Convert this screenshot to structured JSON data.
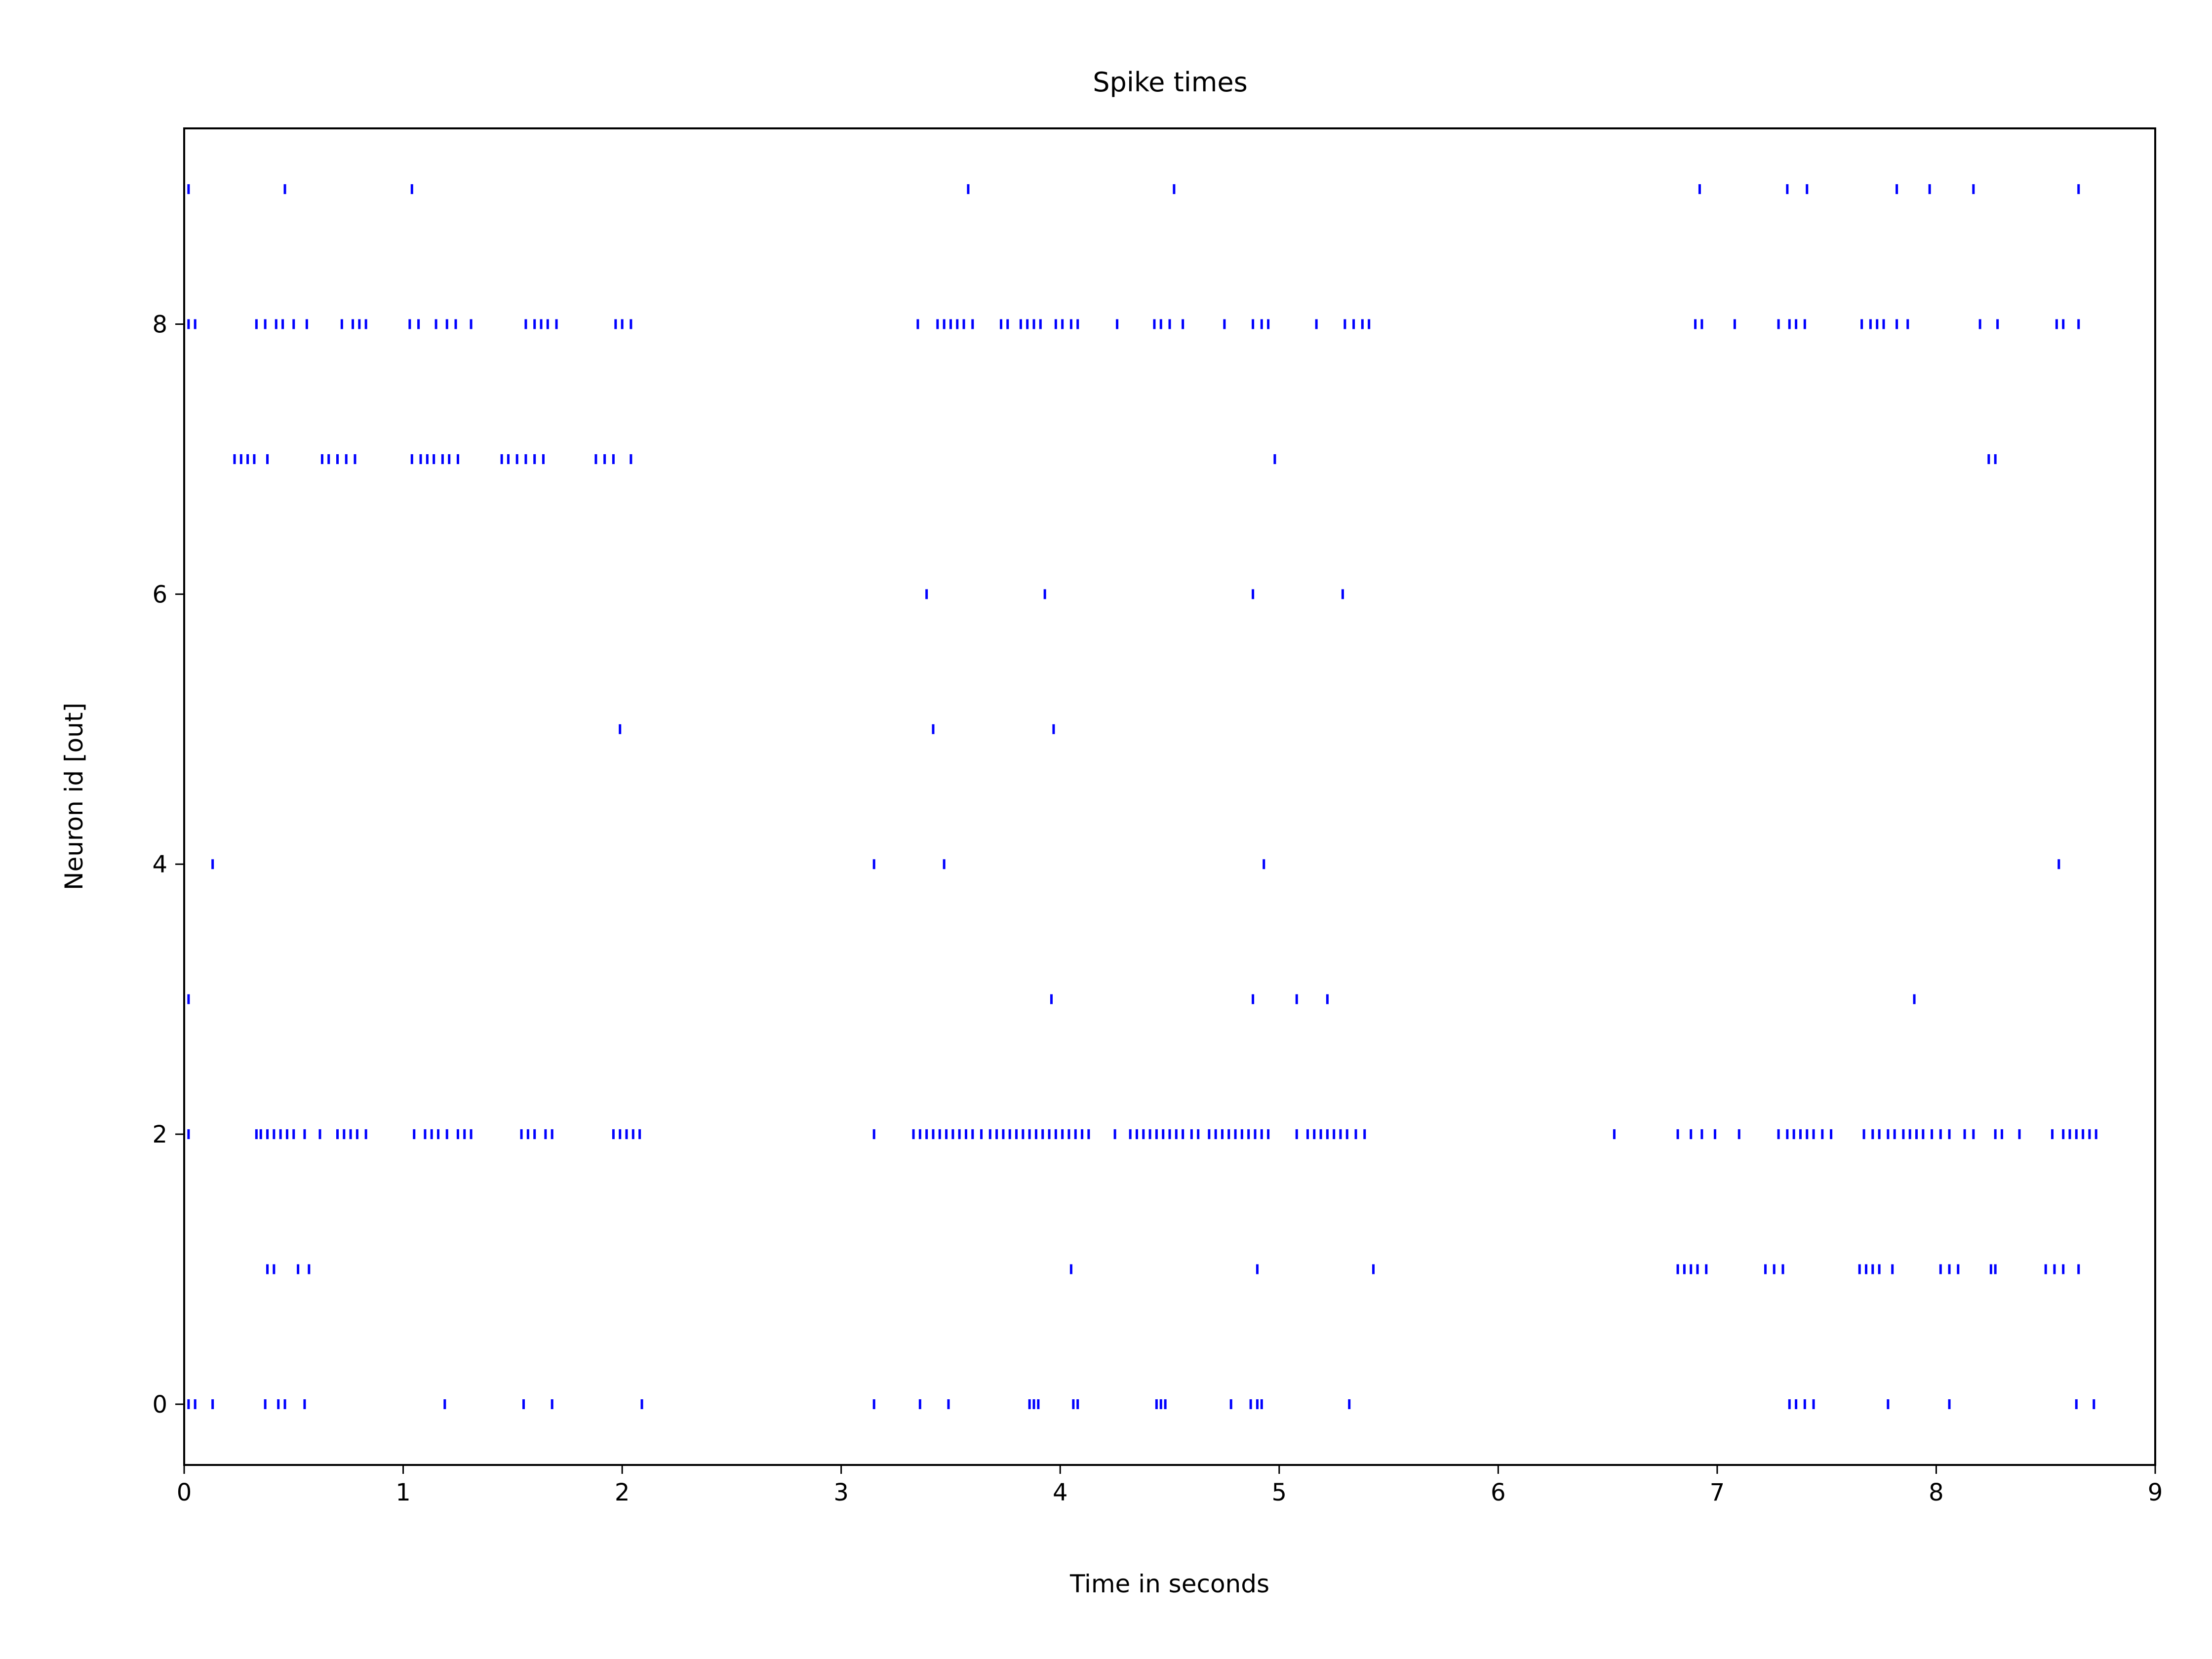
{
  "chart_data": {
    "type": "scatter",
    "title": "Spike times",
    "xlabel": "Time in seconds",
    "ylabel": "Neuron id [out]",
    "xlim": [
      0,
      9
    ],
    "ylim": [
      -0.45,
      9.45
    ],
    "xticks": [
      0,
      1,
      2,
      3,
      4,
      5,
      6,
      7,
      8,
      9
    ],
    "xtick_labels": [
      "0",
      "1",
      "2",
      "3",
      "4",
      "5",
      "6",
      "7",
      "8",
      "9"
    ],
    "yticks": [
      0,
      2,
      4,
      6,
      8
    ],
    "ytick_labels": [
      "0",
      "2",
      "4",
      "6",
      "8"
    ],
    "grid": false,
    "marker": "|",
    "color": "#0000ff",
    "series": [
      {
        "neuron": 0,
        "times": [
          0.02,
          0.05,
          0.13,
          0.37,
          0.43,
          0.46,
          0.55,
          1.19,
          1.55,
          1.68,
          2.09,
          3.15,
          3.36,
          3.49,
          3.86,
          3.88,
          3.9,
          4.06,
          4.08,
          4.44,
          4.46,
          4.48,
          4.78,
          4.87,
          4.9,
          4.92,
          5.32,
          7.33,
          7.36,
          7.4,
          7.44,
          7.78,
          8.06,
          8.64,
          8.72
        ]
      },
      {
        "neuron": 1,
        "times": [
          0.38,
          0.41,
          0.52,
          0.57,
          4.05,
          4.9,
          5.43,
          6.82,
          6.85,
          6.88,
          6.91,
          6.95,
          7.22,
          7.26,
          7.3,
          7.65,
          7.68,
          7.71,
          7.74,
          7.8,
          8.02,
          8.06,
          8.1,
          8.25,
          8.27,
          8.5,
          8.54,
          8.58,
          8.65
        ]
      },
      {
        "neuron": 2,
        "times": [
          0.02,
          0.33,
          0.35,
          0.38,
          0.41,
          0.44,
          0.47,
          0.5,
          0.55,
          0.62,
          0.7,
          0.73,
          0.76,
          0.79,
          0.83,
          1.05,
          1.1,
          1.13,
          1.16,
          1.2,
          1.25,
          1.28,
          1.31,
          1.54,
          1.57,
          1.6,
          1.65,
          1.68,
          1.96,
          1.99,
          2.02,
          2.05,
          2.08,
          3.15,
          3.33,
          3.36,
          3.39,
          3.42,
          3.45,
          3.48,
          3.51,
          3.54,
          3.57,
          3.6,
          3.64,
          3.68,
          3.71,
          3.74,
          3.77,
          3.8,
          3.83,
          3.86,
          3.89,
          3.92,
          3.95,
          3.98,
          4.01,
          4.04,
          4.07,
          4.1,
          4.13,
          4.25,
          4.32,
          4.35,
          4.38,
          4.41,
          4.44,
          4.47,
          4.5,
          4.53,
          4.56,
          4.6,
          4.63,
          4.68,
          4.71,
          4.74,
          4.77,
          4.8,
          4.83,
          4.86,
          4.89,
          4.92,
          4.95,
          5.08,
          5.13,
          5.16,
          5.19,
          5.22,
          5.25,
          5.28,
          5.31,
          5.35,
          5.39,
          6.53,
          6.82,
          6.88,
          6.93,
          6.99,
          7.1,
          7.28,
          7.32,
          7.35,
          7.38,
          7.41,
          7.44,
          7.48,
          7.52,
          7.67,
          7.71,
          7.74,
          7.78,
          7.81,
          7.85,
          7.88,
          7.91,
          7.94,
          7.98,
          8.02,
          8.06,
          8.13,
          8.17,
          8.27,
          8.3,
          8.38,
          8.53,
          8.58,
          8.61,
          8.64,
          8.67,
          8.7,
          8.73
        ]
      },
      {
        "neuron": 3,
        "times": [
          0.02,
          3.96,
          4.88,
          5.08,
          5.22,
          7.9
        ]
      },
      {
        "neuron": 4,
        "times": [
          0.13,
          3.15,
          3.47,
          4.93,
          8.56
        ]
      },
      {
        "neuron": 5,
        "times": [
          1.99,
          3.42,
          3.97
        ]
      },
      {
        "neuron": 6,
        "times": [
          3.39,
          3.93,
          4.88,
          5.29
        ]
      },
      {
        "neuron": 7,
        "times": [
          0.23,
          0.26,
          0.29,
          0.32,
          0.38,
          0.63,
          0.66,
          0.7,
          0.74,
          0.78,
          1.04,
          1.08,
          1.11,
          1.14,
          1.18,
          1.21,
          1.25,
          1.45,
          1.48,
          1.52,
          1.56,
          1.6,
          1.64,
          1.88,
          1.92,
          1.96,
          2.04,
          4.98,
          8.24,
          8.27
        ]
      },
      {
        "neuron": 8,
        "times": [
          0.02,
          0.05,
          0.33,
          0.37,
          0.42,
          0.45,
          0.5,
          0.56,
          0.72,
          0.77,
          0.8,
          0.83,
          1.03,
          1.07,
          1.15,
          1.2,
          1.24,
          1.31,
          1.56,
          1.6,
          1.63,
          1.66,
          1.7,
          1.97,
          2.0,
          2.04,
          3.35,
          3.44,
          3.47,
          3.5,
          3.53,
          3.56,
          3.6,
          3.73,
          3.76,
          3.82,
          3.85,
          3.88,
          3.91,
          3.98,
          4.01,
          4.05,
          4.08,
          4.26,
          4.43,
          4.46,
          4.5,
          4.56,
          4.75,
          4.88,
          4.92,
          4.95,
          5.17,
          5.3,
          5.34,
          5.38,
          5.41,
          6.9,
          6.93,
          7.08,
          7.28,
          7.33,
          7.36,
          7.4,
          7.66,
          7.7,
          7.73,
          7.76,
          7.82,
          7.87,
          8.2,
          8.28,
          8.55,
          8.58,
          8.65
        ]
      },
      {
        "neuron": 9,
        "times": [
          0.02,
          0.46,
          1.04,
          3.58,
          4.52,
          6.92,
          7.32,
          7.41,
          7.82,
          7.97,
          8.17,
          8.65
        ]
      }
    ]
  }
}
